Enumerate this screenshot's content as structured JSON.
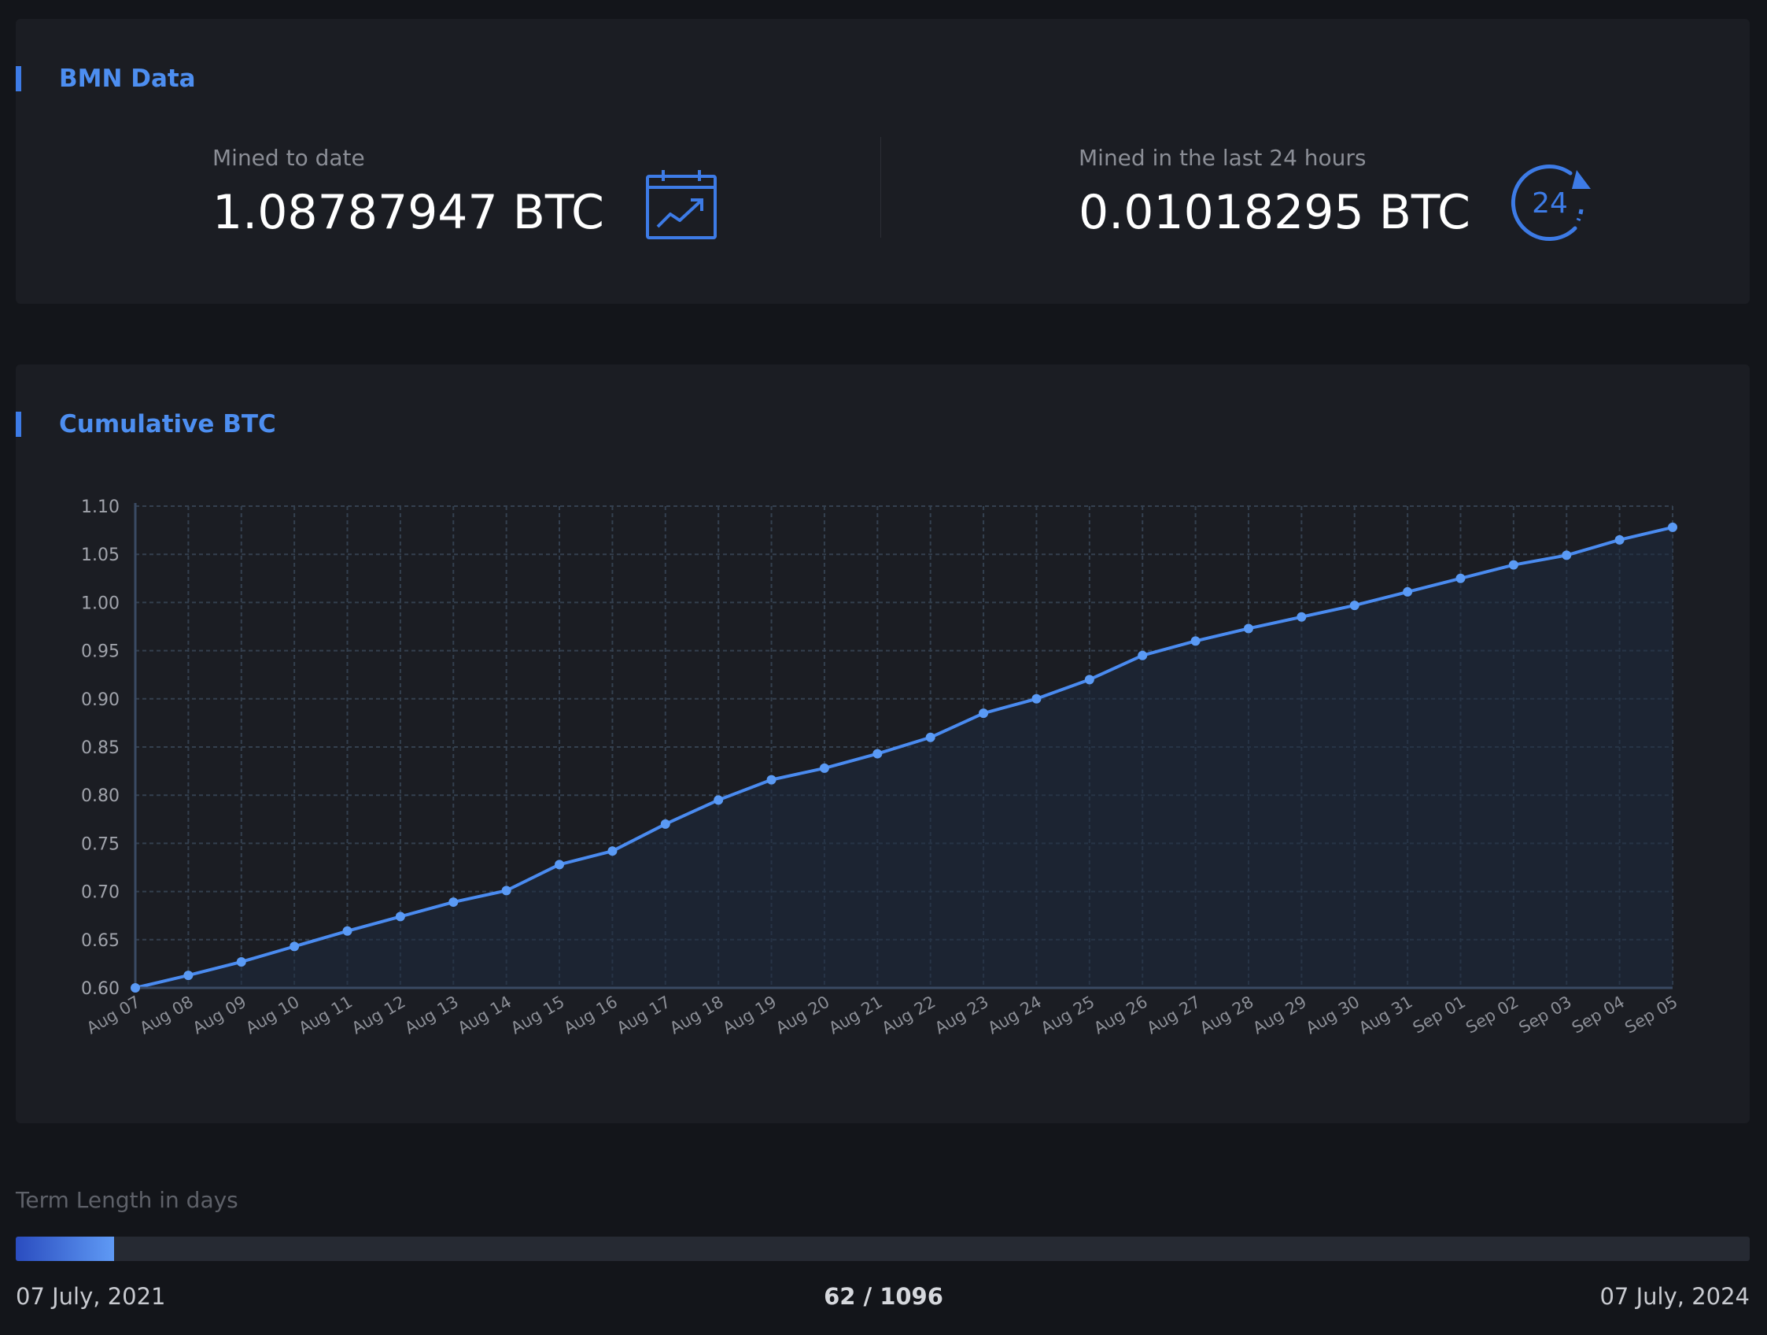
{
  "bmn": {
    "title": "BMN Data",
    "mined_to_date_label": "Mined to date",
    "mined_to_date_value": "1.08787947 BTC",
    "mined_24h_label": "Mined in the last 24 hours",
    "mined_24h_value": "0.01018295 BTC",
    "icon_left": "calendar-trend-icon",
    "icon_right": "24-hours-icon",
    "icon_right_text": "24"
  },
  "chart_section": {
    "title": "Cumulative BTC"
  },
  "colors": {
    "accent": "#4d8ef0",
    "line": "#4a8bf0",
    "grid": "#34404f",
    "background": "#13151a",
    "card": "#1b1d23"
  },
  "chart_data": {
    "type": "area",
    "title": "Cumulative BTC",
    "xlabel": "",
    "ylabel": "",
    "ylim": [
      0.6,
      1.1
    ],
    "yticks": [
      "0.60",
      "0.65",
      "0.70",
      "0.75",
      "0.80",
      "0.85",
      "0.90",
      "0.95",
      "1.00",
      "1.05",
      "1.10"
    ],
    "grid": true,
    "categories": [
      "Aug 07",
      "Aug 08",
      "Aug 09",
      "Aug 10",
      "Aug 11",
      "Aug 12",
      "Aug 13",
      "Aug 14",
      "Aug 15",
      "Aug 16",
      "Aug 17",
      "Aug 18",
      "Aug 19",
      "Aug 20",
      "Aug 21",
      "Aug 22",
      "Aug 23",
      "Aug 24",
      "Aug 25",
      "Aug 26",
      "Aug 27",
      "Aug 28",
      "Aug 29",
      "Aug 30",
      "Aug 31",
      "Sep 01",
      "Sep 02",
      "Sep 03",
      "Sep 04",
      "Sep 05"
    ],
    "values": [
      0.6,
      0.613,
      0.627,
      0.643,
      0.659,
      0.674,
      0.689,
      0.701,
      0.728,
      0.742,
      0.77,
      0.795,
      0.816,
      0.828,
      0.843,
      0.86,
      0.885,
      0.9,
      0.92,
      0.945,
      0.96,
      0.973,
      0.985,
      0.997,
      1.011,
      1.025,
      1.039,
      1.049,
      1.065,
      1.078
    ]
  },
  "term": {
    "label": "Term Length in days",
    "start_date": "07 July, 2021",
    "end_date": "07 July, 2024",
    "progress_text": "62 / 1096",
    "days_elapsed": 62,
    "days_total": 1096
  }
}
